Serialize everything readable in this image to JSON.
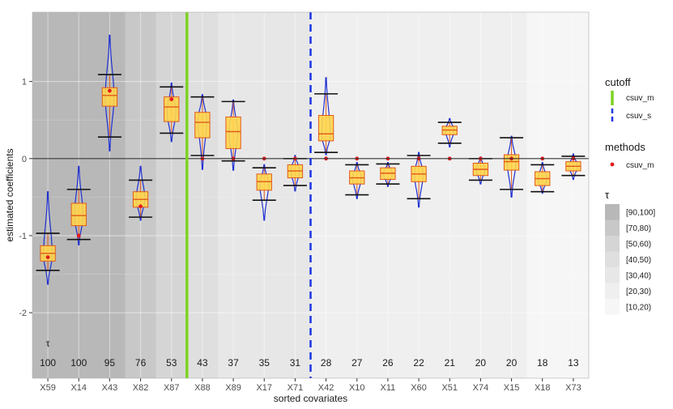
{
  "chart_data": {
    "type": "violin-box",
    "xlabel": "sorted covariates",
    "ylabel": "estimated coefficients",
    "ylim": [
      -2.85,
      1.9
    ],
    "yticks": [
      -2,
      -1,
      0,
      1
    ],
    "grid": true,
    "tau_symbol": "τ",
    "categories": [
      "X59",
      "X14",
      "X43",
      "X82",
      "X87",
      "X88",
      "X89",
      "X17",
      "X71",
      "X42",
      "X10",
      "X11",
      "X60",
      "X51",
      "X74",
      "X15",
      "X18",
      "X73"
    ],
    "tau": [
      100,
      100,
      95,
      76,
      53,
      43,
      37,
      35,
      31,
      28,
      27,
      26,
      22,
      21,
      20,
      20,
      18,
      13
    ],
    "tau_labels": [
      "100",
      "100",
      "95",
      "76",
      "53",
      "43",
      "37",
      "35",
      "31",
      "28",
      "27",
      "26",
      "22",
      "21",
      "20",
      "20",
      "18",
      "13"
    ],
    "csuv_m": [
      -1.28,
      -1.0,
      0.88,
      -0.62,
      0.77,
      0,
      0,
      0,
      0,
      0,
      0,
      0,
      0,
      0,
      0,
      0,
      0,
      0
    ],
    "stats": [
      {
        "lo": -1.45,
        "q1": -1.33,
        "med": -1.23,
        "q3": -1.13,
        "hi": -0.97,
        "vmin": -1.63,
        "vmax": -0.43,
        "mode": -1.25
      },
      {
        "lo": -1.05,
        "q1": -0.87,
        "med": -0.74,
        "q3": -0.58,
        "hi": -0.4,
        "vmin": -1.12,
        "vmax": -0.1,
        "mode": -0.75
      },
      {
        "lo": 0.28,
        "q1": 0.68,
        "med": 0.82,
        "q3": 0.92,
        "hi": 1.09,
        "vmin": 0.1,
        "vmax": 1.6,
        "mode": 0.8
      },
      {
        "lo": -0.76,
        "q1": -0.63,
        "med": -0.53,
        "q3": -0.43,
        "hi": -0.28,
        "vmin": -0.8,
        "vmax": -0.1,
        "mode": -0.53
      },
      {
        "lo": 0.33,
        "q1": 0.48,
        "med": 0.67,
        "q3": 0.8,
        "hi": 0.93,
        "vmin": 0.22,
        "vmax": 0.98,
        "mode": 0.6
      },
      {
        "lo": 0.04,
        "q1": 0.27,
        "med": 0.47,
        "q3": 0.6,
        "hi": 0.8,
        "vmin": -0.14,
        "vmax": 0.83,
        "mode": 0.5
      },
      {
        "lo": -0.03,
        "q1": 0.13,
        "med": 0.35,
        "q3": 0.54,
        "hi": 0.74,
        "vmin": -0.15,
        "vmax": 0.76,
        "mode": 0.35
      },
      {
        "lo": -0.54,
        "q1": -0.41,
        "med": -0.3,
        "q3": -0.2,
        "hi": -0.12,
        "vmin": -0.8,
        "vmax": -0.08,
        "mode": -0.33
      },
      {
        "lo": -0.35,
        "q1": -0.25,
        "med": -0.16,
        "q3": -0.08,
        "hi": 0.0,
        "vmin": -0.42,
        "vmax": 0.04,
        "mode": -0.15
      },
      {
        "lo": 0.08,
        "q1": 0.23,
        "med": 0.32,
        "q3": 0.56,
        "hi": 0.84,
        "vmin": 0.05,
        "vmax": 1.05,
        "mode": 0.3
      },
      {
        "lo": -0.47,
        "q1": -0.33,
        "med": -0.25,
        "q3": -0.16,
        "hi": -0.08,
        "vmin": -0.52,
        "vmax": -0.05,
        "mode": -0.25
      },
      {
        "lo": -0.33,
        "q1": -0.27,
        "med": -0.19,
        "q3": -0.12,
        "hi": -0.07,
        "vmin": -0.36,
        "vmax": -0.05,
        "mode": -0.2
      },
      {
        "lo": -0.52,
        "q1": -0.3,
        "med": -0.2,
        "q3": -0.1,
        "hi": 0.04,
        "vmin": -0.63,
        "vmax": 0.08,
        "mode": -0.2
      },
      {
        "lo": 0.2,
        "q1": 0.31,
        "med": 0.37,
        "q3": 0.42,
        "hi": 0.47,
        "vmin": 0.15,
        "vmax": 0.52,
        "mode": 0.37
      },
      {
        "lo": -0.28,
        "q1": -0.22,
        "med": -0.14,
        "q3": -0.06,
        "hi": 0.0,
        "vmin": -0.33,
        "vmax": 0.02,
        "mode": -0.14
      },
      {
        "lo": -0.4,
        "q1": -0.15,
        "med": -0.04,
        "q3": 0.05,
        "hi": 0.27,
        "vmin": -0.5,
        "vmax": 0.29,
        "mode": -0.04
      },
      {
        "lo": -0.43,
        "q1": -0.35,
        "med": -0.26,
        "q3": -0.17,
        "hi": -0.08,
        "vmin": -0.45,
        "vmax": -0.05,
        "mode": -0.26
      },
      {
        "lo": -0.22,
        "q1": -0.16,
        "med": -0.1,
        "q3": -0.04,
        "hi": 0.03,
        "vmin": -0.27,
        "vmax": 0.06,
        "mode": -0.1
      }
    ],
    "cutoff_m_after_index": 4,
    "cutoff_s_after_index": 8,
    "colors": {
      "violin": "#1f2fd0",
      "box_fill": "#ffd54a",
      "box_border": "#e05a1a",
      "whisker": "#111111",
      "point": "#e41a1c",
      "cutoff_m": "#7ed321",
      "cutoff_s": "#1a35e0",
      "zero_line": "#333333"
    },
    "tau_bands": [
      {
        "label": "[90,100]",
        "color": "#b8b8b8"
      },
      {
        "label": "[70,80)",
        "color": "#c8c8c8"
      },
      {
        "label": "[50,60)",
        "color": "#d5d5d5"
      },
      {
        "label": "[40,50)",
        "color": "#dfdfdf"
      },
      {
        "label": "[30,40)",
        "color": "#e7e7e7"
      },
      {
        "label": "[20,30)",
        "color": "#efefef"
      },
      {
        "label": "[10,20)",
        "color": "#f6f6f6"
      }
    ],
    "legend": {
      "cutoff_title": "cutoff",
      "cutoff_items": [
        "csuv_m",
        "csuv_s"
      ],
      "methods_title": "methods",
      "methods_items": [
        "csuv_m"
      ],
      "tau_title": "τ"
    }
  }
}
